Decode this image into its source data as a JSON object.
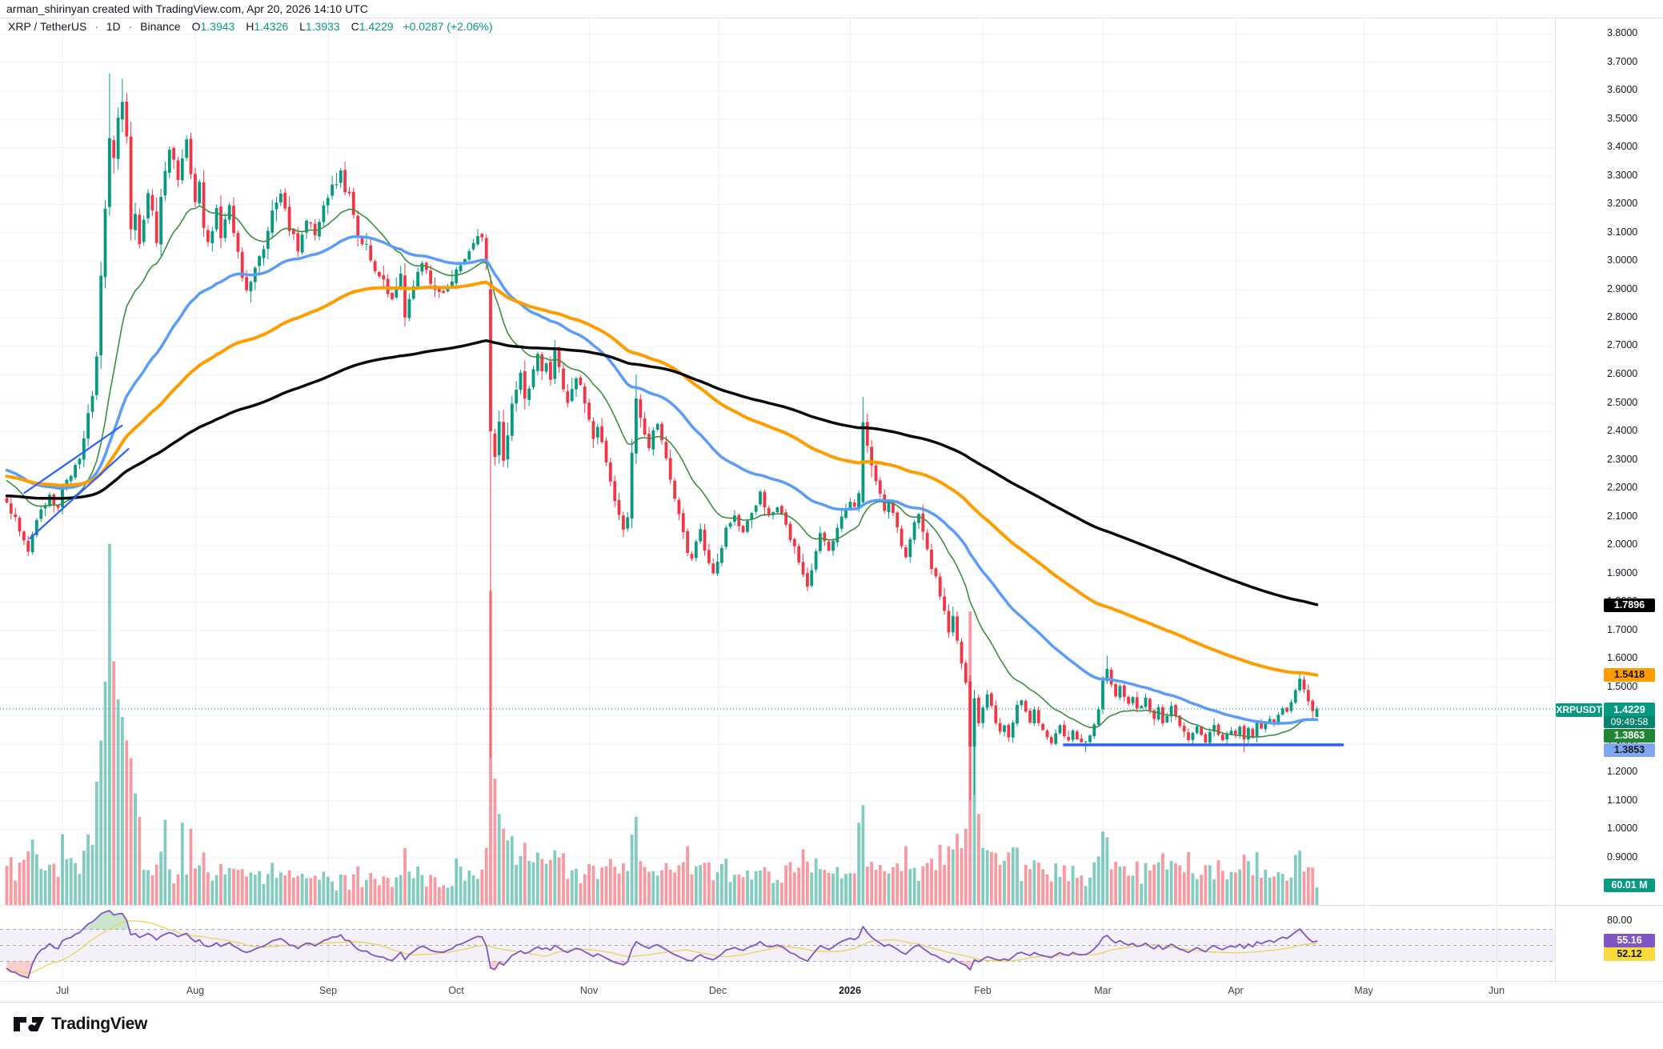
{
  "attribution": "arman_shirinyan created with TradingView.com, Apr 20, 2026 14:10 UTC",
  "legend": {
    "symbol": "XRP / TetherUS",
    "separator": "·",
    "interval": "1D",
    "exchange": "Binance",
    "o_label": "O",
    "o_value": "1.3943",
    "h_label": "H",
    "h_value": "1.4326",
    "l_label": "L",
    "l_value": "1.3933",
    "c_label": "C",
    "c_value": "1.4229",
    "change": "+0.0287 (+2.06%)"
  },
  "logo": {
    "text": "TradingView",
    "mark": "tradingview-17-mark"
  },
  "colors": {
    "candle_up": "#089981",
    "candle_down": "#f23645",
    "volume_up": "rgba(8,153,129,0.5)",
    "volume_down": "rgba(242,54,69,0.5)",
    "ma_fast_green": "#3d8e41",
    "ma_blue": "#5b9cf6",
    "ma_orange": "#ff9d00",
    "ma_black": "#0b0b0b",
    "trendline_blue": "#2962ff",
    "current_price_line": "#089981",
    "rsi_purple": "#7e57c2",
    "rsi_ma_yellow": "#e9d457",
    "rsi_band_fill": "rgba(126,87,194,0.09)",
    "grid": "#eef0f6",
    "axis_text": "#131722",
    "separator": "#e0e3eb",
    "label_black_bg": "#000000",
    "label_orange_bg": "#ff9d00",
    "label_green_bg": "#208636",
    "label_blue_bg": "#7fa7f1",
    "label_teal_bg": "#089981",
    "label_purple_bg": "#7e57c2",
    "label_yellow_bg": "#f8da3c"
  },
  "price_axis": {
    "ticks": [
      "3.8000",
      "3.7000",
      "3.6000",
      "3.5000",
      "3.4000",
      "3.3000",
      "3.2000",
      "3.1000",
      "3.0000",
      "2.9000",
      "2.8000",
      "2.7000",
      "2.6000",
      "2.5000",
      "2.4000",
      "2.3000",
      "2.2000",
      "2.1000",
      "2.0000",
      "1.9000",
      "1.8000",
      "1.7000",
      "1.6000",
      "1.5000",
      "1.4000",
      "1.3000",
      "1.2000",
      "1.1000",
      "1.0000",
      "0.9000"
    ],
    "ma200_label": "1.7896",
    "ma100_label": "1.5418",
    "symbol_tag": "XRPUSDT",
    "last_price_label": "1.4229",
    "countdown": "09:49:58",
    "ma20_label": "1.3863",
    "ma50_label": "1.3853",
    "volume_label": "60.01 M",
    "rsi_tick": "80.00",
    "rsi_label": "55.16",
    "rsi_ma_label": "52.12"
  },
  "time_axis": {
    "labels": [
      {
        "text": "Jul",
        "day": 13,
        "year": false
      },
      {
        "text": "Aug",
        "day": 44,
        "year": false
      },
      {
        "text": "Sep",
        "day": 75,
        "year": false
      },
      {
        "text": "Oct",
        "day": 105,
        "year": false
      },
      {
        "text": "Nov",
        "day": 136,
        "year": false
      },
      {
        "text": "Dec",
        "day": 166,
        "year": false
      },
      {
        "text": "2026",
        "day": 197,
        "year": true
      },
      {
        "text": "Feb",
        "day": 228,
        "year": false
      },
      {
        "text": "Mar",
        "day": 256,
        "year": false
      },
      {
        "text": "Apr",
        "day": 287,
        "year": false
      },
      {
        "text": "May",
        "day": 317,
        "year": false
      },
      {
        "text": "Jun",
        "day": 348,
        "year": false
      }
    ]
  },
  "chart_data": {
    "type": "candlestick",
    "symbol": "XRPUSDT",
    "exchange": "Binance",
    "timeframe": "1D",
    "start_date": "2025-06-18",
    "end_date": "2026-04-20",
    "ylim": [
      0.9,
      3.8
    ],
    "grid": true,
    "last_candle": {
      "open": 1.3943,
      "high": 1.4326,
      "low": 1.3933,
      "close": 1.4229,
      "change": "+0.0287 (+2.06%)"
    },
    "current_price": 1.4229,
    "prehistory_waypoints": [
      [
        -260,
        1.9
      ],
      [
        -220,
        1.96
      ],
      [
        -180,
        2.0
      ],
      [
        -140,
        2.06
      ],
      [
        -100,
        2.14
      ],
      [
        -70,
        2.22
      ],
      [
        -40,
        2.33
      ],
      [
        -25,
        2.38
      ],
      [
        -15,
        2.3
      ],
      [
        -8,
        2.22
      ],
      [
        -3,
        2.17
      ]
    ],
    "close_waypoints": [
      [
        0,
        2.15
      ],
      [
        2,
        2.09
      ],
      [
        4,
        2.02
      ],
      [
        5,
        1.97
      ],
      [
        6,
        2.05
      ],
      [
        8,
        2.12
      ],
      [
        10,
        2.17
      ],
      [
        12,
        2.14
      ],
      [
        13,
        2.2
      ],
      [
        15,
        2.24
      ],
      [
        17,
        2.3
      ],
      [
        19,
        2.45
      ],
      [
        20,
        2.52
      ],
      [
        21,
        2.66
      ],
      [
        22,
        2.95
      ],
      [
        23,
        3.2
      ],
      [
        24,
        3.45
      ],
      [
        25,
        3.36
      ],
      [
        26,
        3.5
      ],
      [
        27,
        3.55
      ],
      [
        28,
        3.42
      ],
      [
        29,
        3.12
      ],
      [
        30,
        3.18
      ],
      [
        31,
        3.06
      ],
      [
        32,
        3.15
      ],
      [
        33,
        3.25
      ],
      [
        34,
        3.18
      ],
      [
        35,
        3.06
      ],
      [
        36,
        3.22
      ],
      [
        37,
        3.33
      ],
      [
        38,
        3.4
      ],
      [
        39,
        3.35
      ],
      [
        40,
        3.28
      ],
      [
        41,
        3.38
      ],
      [
        42,
        3.42
      ],
      [
        43,
        3.3
      ],
      [
        44,
        3.22
      ],
      [
        45,
        3.28
      ],
      [
        46,
        3.12
      ],
      [
        47,
        3.05
      ],
      [
        48,
        3.12
      ],
      [
        49,
        3.2
      ],
      [
        50,
        3.08
      ],
      [
        52,
        3.18
      ],
      [
        54,
        3.05
      ],
      [
        55,
        2.95
      ],
      [
        56,
        2.88
      ],
      [
        58,
        2.96
      ],
      [
        60,
        3.05
      ],
      [
        62,
        3.18
      ],
      [
        64,
        3.24
      ],
      [
        66,
        3.12
      ],
      [
        68,
        3.05
      ],
      [
        70,
        3.15
      ],
      [
        72,
        3.08
      ],
      [
        74,
        3.2
      ],
      [
        76,
        3.26
      ],
      [
        78,
        3.3
      ],
      [
        80,
        3.22
      ],
      [
        82,
        3.1
      ],
      [
        84,
        3.05
      ],
      [
        86,
        2.98
      ],
      [
        88,
        2.92
      ],
      [
        90,
        2.87
      ],
      [
        92,
        2.95
      ],
      [
        93,
        2.8
      ],
      [
        95,
        2.9
      ],
      [
        97,
        3.0
      ],
      [
        99,
        2.92
      ],
      [
        101,
        2.88
      ],
      [
        103,
        2.92
      ],
      [
        105,
        2.96
      ],
      [
        107,
        3.02
      ],
      [
        109,
        3.06
      ],
      [
        111,
        3.1
      ],
      [
        112,
        3.0
      ],
      [
        113,
        2.4
      ],
      [
        114,
        2.32
      ],
      [
        115,
        2.42
      ],
      [
        116,
        2.3
      ],
      [
        117,
        2.38
      ],
      [
        118,
        2.5
      ],
      [
        119,
        2.56
      ],
      [
        120,
        2.6
      ],
      [
        121,
        2.52
      ],
      [
        122,
        2.56
      ],
      [
        123,
        2.62
      ],
      [
        124,
        2.66
      ],
      [
        125,
        2.6
      ],
      [
        126,
        2.64
      ],
      [
        127,
        2.58
      ],
      [
        128,
        2.68
      ],
      [
        129,
        2.62
      ],
      [
        130,
        2.56
      ],
      [
        131,
        2.5
      ],
      [
        132,
        2.54
      ],
      [
        133,
        2.6
      ],
      [
        134,
        2.56
      ],
      [
        135,
        2.5
      ],
      [
        136,
        2.44
      ],
      [
        137,
        2.38
      ],
      [
        138,
        2.42
      ],
      [
        139,
        2.35
      ],
      [
        140,
        2.3
      ],
      [
        141,
        2.22
      ],
      [
        142,
        2.16
      ],
      [
        143,
        2.1
      ],
      [
        144,
        2.05
      ],
      [
        145,
        2.1
      ],
      [
        146,
        2.32
      ],
      [
        147,
        2.52
      ],
      [
        148,
        2.44
      ],
      [
        149,
        2.4
      ],
      [
        150,
        2.34
      ],
      [
        151,
        2.4
      ],
      [
        152,
        2.44
      ],
      [
        153,
        2.36
      ],
      [
        154,
        2.3
      ],
      [
        155,
        2.22
      ],
      [
        156,
        2.15
      ],
      [
        157,
        2.1
      ],
      [
        158,
        2.04
      ],
      [
        159,
        1.97
      ],
      [
        160,
        1.95
      ],
      [
        161,
        2.02
      ],
      [
        162,
        2.06
      ],
      [
        163,
        1.98
      ],
      [
        164,
        1.94
      ],
      [
        165,
        1.9
      ],
      [
        166,
        1.95
      ],
      [
        167,
        2.0
      ],
      [
        168,
        2.06
      ],
      [
        170,
        2.1
      ],
      [
        172,
        2.04
      ],
      [
        174,
        2.12
      ],
      [
        176,
        2.18
      ],
      [
        178,
        2.1
      ],
      [
        180,
        2.14
      ],
      [
        182,
        2.06
      ],
      [
        184,
        1.99
      ],
      [
        186,
        1.9
      ],
      [
        187,
        1.86
      ],
      [
        188,
        1.92
      ],
      [
        189,
        1.98
      ],
      [
        190,
        2.03
      ],
      [
        192,
        1.99
      ],
      [
        194,
        2.06
      ],
      [
        196,
        2.12
      ],
      [
        197,
        2.16
      ],
      [
        198,
        2.14
      ],
      [
        199,
        2.18
      ],
      [
        200,
        2.42
      ],
      [
        201,
        2.35
      ],
      [
        202,
        2.28
      ],
      [
        203,
        2.22
      ],
      [
        204,
        2.18
      ],
      [
        205,
        2.12
      ],
      [
        206,
        2.16
      ],
      [
        207,
        2.1
      ],
      [
        208,
        2.05
      ],
      [
        209,
        2.0
      ],
      [
        210,
        1.96
      ],
      [
        211,
        2.02
      ],
      [
        212,
        2.08
      ],
      [
        213,
        2.12
      ],
      [
        214,
        2.05
      ],
      [
        215,
        1.98
      ],
      [
        216,
        1.92
      ],
      [
        217,
        1.88
      ],
      [
        218,
        1.82
      ],
      [
        219,
        1.76
      ],
      [
        220,
        1.7
      ],
      [
        221,
        1.74
      ],
      [
        222,
        1.66
      ],
      [
        223,
        1.58
      ],
      [
        224,
        1.52
      ],
      [
        225,
        1.29
      ],
      [
        226,
        1.46
      ],
      [
        227,
        1.38
      ],
      [
        228,
        1.42
      ],
      [
        229,
        1.47
      ],
      [
        230,
        1.44
      ],
      [
        231,
        1.38
      ],
      [
        232,
        1.34
      ],
      [
        233,
        1.37
      ],
      [
        234,
        1.32
      ],
      [
        235,
        1.38
      ],
      [
        236,
        1.43
      ],
      [
        237,
        1.46
      ],
      [
        238,
        1.42
      ],
      [
        239,
        1.38
      ],
      [
        240,
        1.42
      ],
      [
        241,
        1.38
      ],
      [
        242,
        1.35
      ],
      [
        243,
        1.32
      ],
      [
        244,
        1.3
      ],
      [
        245,
        1.34
      ],
      [
        246,
        1.36
      ],
      [
        247,
        1.33
      ],
      [
        248,
        1.31
      ],
      [
        249,
        1.34
      ],
      [
        250,
        1.32
      ],
      [
        251,
        1.3
      ],
      [
        252,
        1.31
      ],
      [
        253,
        1.33
      ],
      [
        254,
        1.36
      ],
      [
        255,
        1.43
      ],
      [
        256,
        1.53
      ],
      [
        257,
        1.56
      ],
      [
        258,
        1.5
      ],
      [
        259,
        1.46
      ],
      [
        260,
        1.5
      ],
      [
        261,
        1.47
      ],
      [
        262,
        1.44
      ],
      [
        263,
        1.47
      ],
      [
        264,
        1.42
      ],
      [
        265,
        1.44
      ],
      [
        266,
        1.46
      ],
      [
        267,
        1.42
      ],
      [
        268,
        1.39
      ],
      [
        269,
        1.42
      ],
      [
        270,
        1.38
      ],
      [
        271,
        1.4
      ],
      [
        272,
        1.43
      ],
      [
        273,
        1.39
      ],
      [
        274,
        1.36
      ],
      [
        275,
        1.34
      ],
      [
        276,
        1.31
      ],
      [
        277,
        1.34
      ],
      [
        278,
        1.36
      ],
      [
        279,
        1.33
      ],
      [
        280,
        1.31
      ],
      [
        281,
        1.34
      ],
      [
        282,
        1.36
      ],
      [
        283,
        1.33
      ],
      [
        284,
        1.31
      ],
      [
        285,
        1.33
      ],
      [
        286,
        1.35
      ],
      [
        287,
        1.33
      ],
      [
        288,
        1.36
      ],
      [
        289,
        1.31
      ],
      [
        290,
        1.35
      ],
      [
        291,
        1.33
      ],
      [
        292,
        1.37
      ],
      [
        293,
        1.35
      ],
      [
        294,
        1.37
      ],
      [
        295,
        1.39
      ],
      [
        296,
        1.37
      ],
      [
        297,
        1.4
      ],
      [
        298,
        1.43
      ],
      [
        299,
        1.41
      ],
      [
        300,
        1.45
      ],
      [
        301,
        1.49
      ],
      [
        302,
        1.52
      ],
      [
        303,
        1.49
      ],
      [
        304,
        1.45
      ],
      [
        305,
        1.41
      ],
      [
        306,
        1.4229
      ]
    ],
    "ohlc_overrides": {
      "24": {
        "h": 3.66
      },
      "27": {
        "h": 3.64
      },
      "113": {
        "o": 2.9,
        "h": 2.95,
        "l": 1.25,
        "c": 2.4
      },
      "147": {
        "h": 2.6
      },
      "200": {
        "o": 2.15,
        "h": 2.52
      },
      "225": {
        "o": 1.52,
        "h": 1.54,
        "l": 1.1,
        "c": 1.29
      },
      "226": {
        "o": 1.29,
        "h": 1.49,
        "l": 1.12,
        "c": 1.46
      },
      "252": {
        "l": 1.27
      },
      "257": {
        "h": 1.61
      },
      "289": {
        "l": 1.27
      },
      "302": {
        "h": 1.545
      },
      "305": {
        "l": 1.388
      },
      "306": {
        "o": 1.3943,
        "h": 1.4326,
        "l": 1.3933,
        "c": 1.4229
      }
    },
    "volume_unit": "M",
    "volume_last": 60.01,
    "volume_overrides": {
      "21": 420,
      "22": 560,
      "23": 760,
      "24": 1230,
      "25": 830,
      "26": 700,
      "27": 640,
      "28": 560,
      "29": 500,
      "30": 380,
      "31": 300,
      "37": 290,
      "41": 280,
      "43": 260,
      "113": 1070,
      "114": 430,
      "115": 310,
      "116": 260,
      "117": 220,
      "146": 240,
      "147": 300,
      "159": 200,
      "186": 190,
      "199": 280,
      "200": 340,
      "210": 200,
      "224": 260,
      "225": 1000,
      "226": 640,
      "227": 310,
      "256": 250,
      "257": 230,
      "276": 180,
      "301": 170,
      "302": 185,
      "306": 60.01
    },
    "moving_averages": [
      {
        "name": "ema-20",
        "period": 20,
        "color": "#3d8e41",
        "width": 1.6,
        "last": 1.3863
      },
      {
        "name": "ema-50",
        "period": 50,
        "color": "#5b9cf6",
        "width": 3.5,
        "last": 1.3853
      },
      {
        "name": "ema-100",
        "period": 100,
        "color": "#ff9d00",
        "width": 4,
        "last": 1.5418
      },
      {
        "name": "ema-200",
        "period": 200,
        "color": "#0b0b0b",
        "width": 3.5,
        "last": 1.7896
      }
    ],
    "rsi": {
      "period": 14,
      "last": 55.16,
      "ma_last": 52.12,
      "upper": 70,
      "middle": 50,
      "lower": 30,
      "visible_tick": 80
    },
    "trendlines": [
      {
        "name": "channel-upper",
        "x1_day": 4.1,
        "p1": 2.183,
        "x2_day": 26.9,
        "p2": 2.42,
        "width": 2.2
      },
      {
        "name": "channel-lower",
        "x1_day": 5.4,
        "p1": 2.023,
        "x2_day": 28.4,
        "p2": 2.338,
        "width": 2.2
      },
      {
        "name": "horizontal-support",
        "x1_day": 247,
        "p1": 1.296,
        "x2_day": 312,
        "p2": 1.296,
        "width": 3.5
      }
    ]
  }
}
